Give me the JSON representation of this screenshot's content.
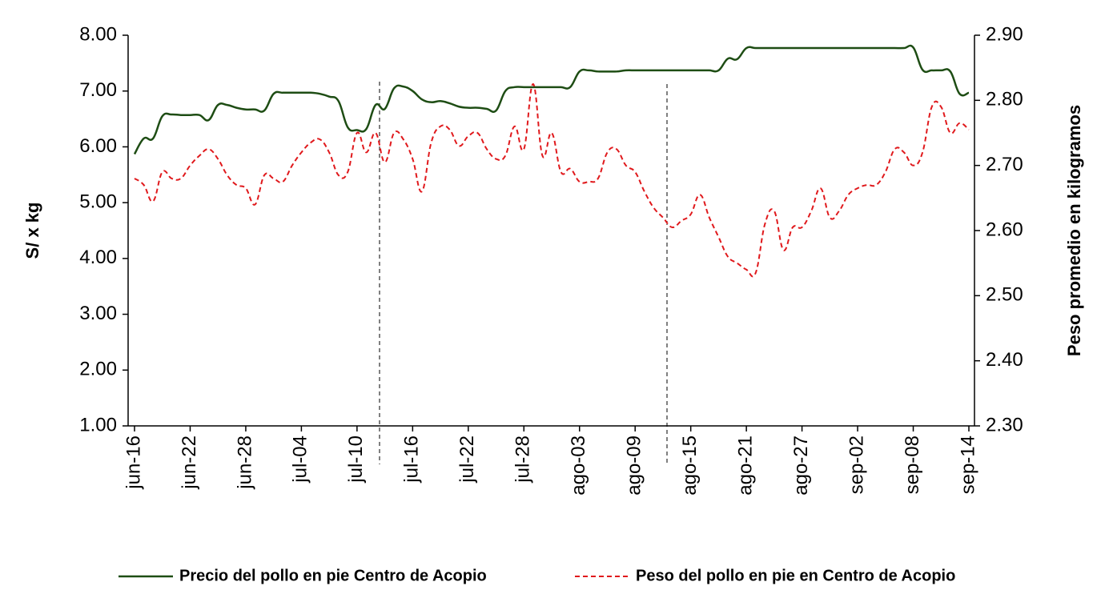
{
  "chart_data": {
    "type": "line",
    "categories": [
      "jun-16",
      null,
      null,
      null,
      null,
      null,
      "jun-22",
      null,
      null,
      null,
      null,
      null,
      "jun-28",
      null,
      null,
      null,
      null,
      null,
      "jul-04",
      null,
      null,
      null,
      null,
      null,
      "jul-10",
      null,
      null,
      null,
      null,
      null,
      "jul-16",
      null,
      null,
      null,
      null,
      null,
      "jul-22",
      null,
      null,
      null,
      null,
      null,
      "jul-28",
      null,
      null,
      null,
      null,
      null,
      "ago-03",
      null,
      null,
      null,
      null,
      null,
      "ago-09",
      null,
      null,
      null,
      null,
      null,
      "ago-15",
      null,
      null,
      null,
      null,
      null,
      "ago-21",
      null,
      null,
      null,
      null,
      null,
      "ago-27",
      null,
      null,
      null,
      null,
      null,
      "sep-02",
      null,
      null,
      null,
      null,
      null,
      "sep-08",
      null,
      null,
      null,
      null,
      null,
      "sep-14"
    ],
    "y_label": "S/  x  kg",
    "y2_label": "Peso promedio en kilogramos",
    "ylim": [
      1,
      8
    ],
    "yticks": [
      {
        "value": 1,
        "label": "1.00"
      },
      {
        "value": 2,
        "label": "2.00"
      },
      {
        "value": 3,
        "label": "3.00"
      },
      {
        "value": 4,
        "label": "4.00"
      },
      {
        "value": 5,
        "label": "5.00"
      },
      {
        "value": 6,
        "label": "6.00"
      },
      {
        "value": 7,
        "label": "7.00"
      },
      {
        "value": 8,
        "label": "8.00"
      }
    ],
    "y2lim": [
      2.3,
      2.9
    ],
    "y2ticks": [
      {
        "value": 2.3,
        "label": "2.30"
      },
      {
        "value": 2.4,
        "label": "2.40"
      },
      {
        "value": 2.5,
        "label": "2.50"
      },
      {
        "value": 2.6,
        "label": "2.60"
      },
      {
        "value": 2.7,
        "label": "2.70"
      },
      {
        "value": 2.8,
        "label": "2.80"
      },
      {
        "value": 2.9,
        "label": "2.90"
      }
    ],
    "series": [
      {
        "name": "Precio del pollo en pie Centro de Acopio",
        "color": "#1e4d14",
        "dash": false,
        "axis": "y",
        "values": [
          5.87,
          6.15,
          6.15,
          6.55,
          6.58,
          6.57,
          6.57,
          6.57,
          6.48,
          6.75,
          6.75,
          6.7,
          6.67,
          6.67,
          6.65,
          6.95,
          6.97,
          6.97,
          6.97,
          6.97,
          6.95,
          6.9,
          6.82,
          6.35,
          6.3,
          6.32,
          6.75,
          6.68,
          7.05,
          7.08,
          7.0,
          6.85,
          6.8,
          6.82,
          6.78,
          6.72,
          6.7,
          6.7,
          6.68,
          6.65,
          7.0,
          7.07,
          7.07,
          7.07,
          7.07,
          7.07,
          7.07,
          7.07,
          7.35,
          7.37,
          7.35,
          7.35,
          7.35,
          7.37,
          7.37,
          7.37,
          7.37,
          7.37,
          7.37,
          7.37,
          7.37,
          7.37,
          7.37,
          7.37,
          7.58,
          7.57,
          7.77,
          7.77,
          7.77,
          7.77,
          7.77,
          7.77,
          7.77,
          7.77,
          7.77,
          7.77,
          7.77,
          7.77,
          7.77,
          7.77,
          7.77,
          7.77,
          7.77,
          7.77,
          7.78,
          7.38,
          7.37,
          7.37,
          7.35,
          6.95,
          6.97
        ]
      },
      {
        "name": "Peso del pollo en pie en Centro de Acopio",
        "color": "#e0191c",
        "dash": true,
        "axis": "y2",
        "values": [
          2.68,
          2.67,
          2.645,
          2.69,
          2.68,
          2.68,
          2.7,
          2.715,
          2.725,
          2.71,
          2.685,
          2.67,
          2.665,
          2.64,
          2.685,
          2.68,
          2.675,
          2.7,
          2.72,
          2.735,
          2.74,
          2.72,
          2.685,
          2.69,
          2.75,
          2.72,
          2.75,
          2.705,
          2.75,
          2.74,
          2.71,
          2.66,
          2.735,
          2.76,
          2.755,
          2.73,
          2.745,
          2.75,
          2.725,
          2.71,
          2.715,
          2.76,
          2.725,
          2.825,
          2.715,
          2.75,
          2.69,
          2.695,
          2.675,
          2.675,
          2.68,
          2.72,
          2.725,
          2.7,
          2.69,
          2.66,
          2.635,
          2.62,
          2.605,
          2.615,
          2.625,
          2.655,
          2.62,
          2.59,
          2.56,
          2.55,
          2.54,
          2.535,
          2.61,
          2.63,
          2.57,
          2.605,
          2.605,
          2.63,
          2.665,
          2.62,
          2.63,
          2.655,
          2.665,
          2.67,
          2.67,
          2.69,
          2.725,
          2.72,
          2.7,
          2.72,
          2.79,
          2.79,
          2.75,
          2.765,
          2.755
        ]
      }
    ]
  }
}
